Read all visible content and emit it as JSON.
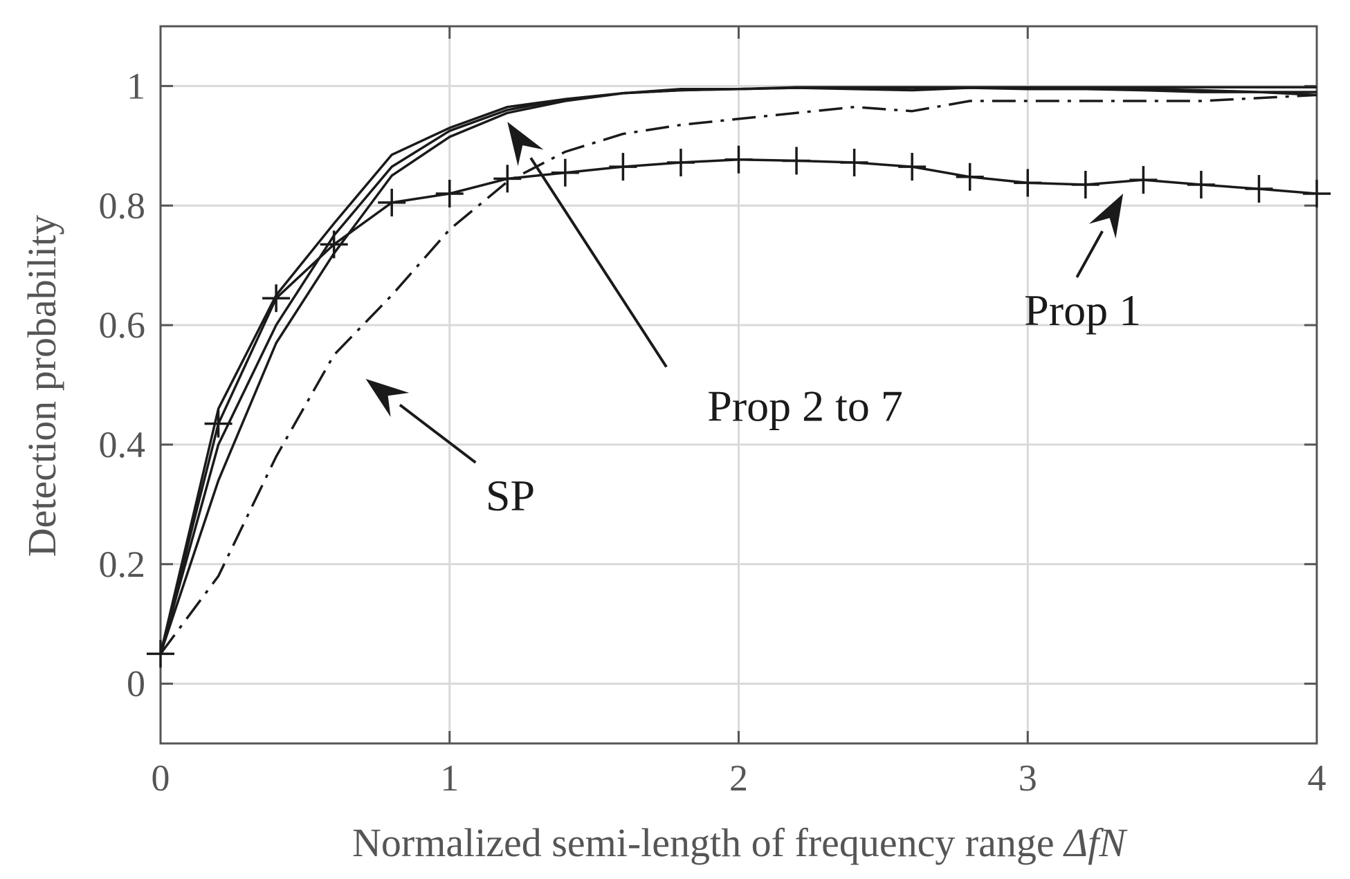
{
  "chart_data": {
    "type": "line",
    "title": "",
    "xlabel": "Normalized semi-length of frequency range ",
    "xlabel_math": "ΔfN",
    "ylabel": "Detection probability",
    "xlim": [
      0,
      4
    ],
    "ylim": [
      -0.1,
      1.1
    ],
    "xticks": [
      0,
      1,
      2,
      3,
      4
    ],
    "xtick_labels": [
      "0",
      "1",
      "2",
      "3",
      "4"
    ],
    "yticks": [
      0,
      0.2,
      0.4,
      0.6,
      0.8,
      1
    ],
    "ytick_labels": [
      "0",
      "0.2",
      "0.4",
      "0.6",
      "0.8",
      "1"
    ],
    "grid": true,
    "colors": {
      "line": "#1a1a1a",
      "grid": "#d9d9d9",
      "axis": "#555555"
    },
    "series": [
      {
        "style": "solid",
        "x": [
          0,
          0.2,
          0.4,
          0.6,
          0.8,
          1.0,
          1.2,
          1.4,
          1.6,
          1.8,
          2.0,
          2.2,
          2.4,
          2.6,
          2.8,
          3.0,
          3.2,
          3.4,
          3.6,
          3.8,
          4.0
        ],
        "y": [
          0.05,
          0.46,
          0.65,
          0.77,
          0.885,
          0.93,
          0.965,
          0.978,
          0.988,
          0.995,
          0.995,
          0.998,
          0.998,
          0.998,
          0.998,
          0.998,
          0.998,
          0.998,
          0.998,
          0.998,
          0.998
        ]
      },
      {
        "style": "solid",
        "x": [
          0,
          0.2,
          0.4,
          0.6,
          0.8,
          1.0,
          1.2,
          1.4,
          1.6,
          1.8,
          2.0,
          2.2,
          2.4,
          2.6,
          2.8,
          3.0,
          3.2,
          3.4,
          3.6,
          3.8,
          4.0
        ],
        "y": [
          0.05,
          0.4,
          0.6,
          0.75,
          0.865,
          0.925,
          0.96,
          0.978,
          0.988,
          0.993,
          0.995,
          0.997,
          0.995,
          0.993,
          0.997,
          0.995,
          0.995,
          0.993,
          0.99,
          0.99,
          0.985
        ]
      },
      {
        "style": "solid",
        "x": [
          0,
          0.2,
          0.4,
          0.6,
          0.8,
          1.0,
          1.2,
          1.4,
          1.6,
          1.8,
          2.0,
          2.2,
          2.4,
          2.6,
          2.8,
          3.0,
          3.2,
          3.4,
          3.6,
          3.8,
          4.0
        ],
        "y": [
          0.05,
          0.34,
          0.57,
          0.72,
          0.85,
          0.915,
          0.955,
          0.975,
          0.988,
          0.993,
          0.995,
          0.997,
          0.997,
          0.997,
          0.997,
          0.997,
          0.997,
          0.995,
          0.993,
          0.99,
          0.99
        ]
      },
      {
        "style": "dashdot",
        "x": [
          0,
          0.2,
          0.4,
          0.6,
          0.8,
          1.0,
          1.2,
          1.4,
          1.6,
          1.8,
          2.0,
          2.2,
          2.4,
          2.6,
          2.8,
          3.0,
          3.2,
          3.4,
          3.6,
          3.8,
          4.0
        ],
        "y": [
          0.05,
          0.18,
          0.38,
          0.55,
          0.65,
          0.76,
          0.84,
          0.89,
          0.92,
          0.935,
          0.945,
          0.955,
          0.965,
          0.958,
          0.975,
          0.975,
          0.975,
          0.975,
          0.975,
          0.98,
          0.985
        ]
      },
      {
        "style": "solid-plus",
        "x": [
          0,
          0.2,
          0.4,
          0.6,
          0.8,
          1.0,
          1.2,
          1.4,
          1.6,
          1.8,
          2.0,
          2.2,
          2.4,
          2.6,
          2.8,
          3.0,
          3.2,
          3.4,
          3.6,
          3.8,
          4.0
        ],
        "y": [
          0.05,
          0.435,
          0.645,
          0.735,
          0.805,
          0.82,
          0.845,
          0.855,
          0.865,
          0.872,
          0.877,
          0.875,
          0.872,
          0.865,
          0.848,
          0.838,
          0.835,
          0.843,
          0.835,
          0.828,
          0.82
        ]
      }
    ],
    "annotations": [
      {
        "text": "Prop 1",
        "x": 3.19,
        "y": 0.6,
        "arrow_from": [
          3.17,
          0.68
        ],
        "arrow_to": [
          3.33,
          0.82
        ]
      },
      {
        "text": "Prop 2 to 7",
        "x": 2.23,
        "y": 0.44,
        "arrow_from": [
          1.75,
          0.53
        ],
        "arrow_to": [
          1.2,
          0.94
        ]
      },
      {
        "text": "SP",
        "x": 1.21,
        "y": 0.29,
        "arrow_from": [
          1.09,
          0.37
        ],
        "arrow_to": [
          0.71,
          0.51
        ]
      }
    ]
  }
}
